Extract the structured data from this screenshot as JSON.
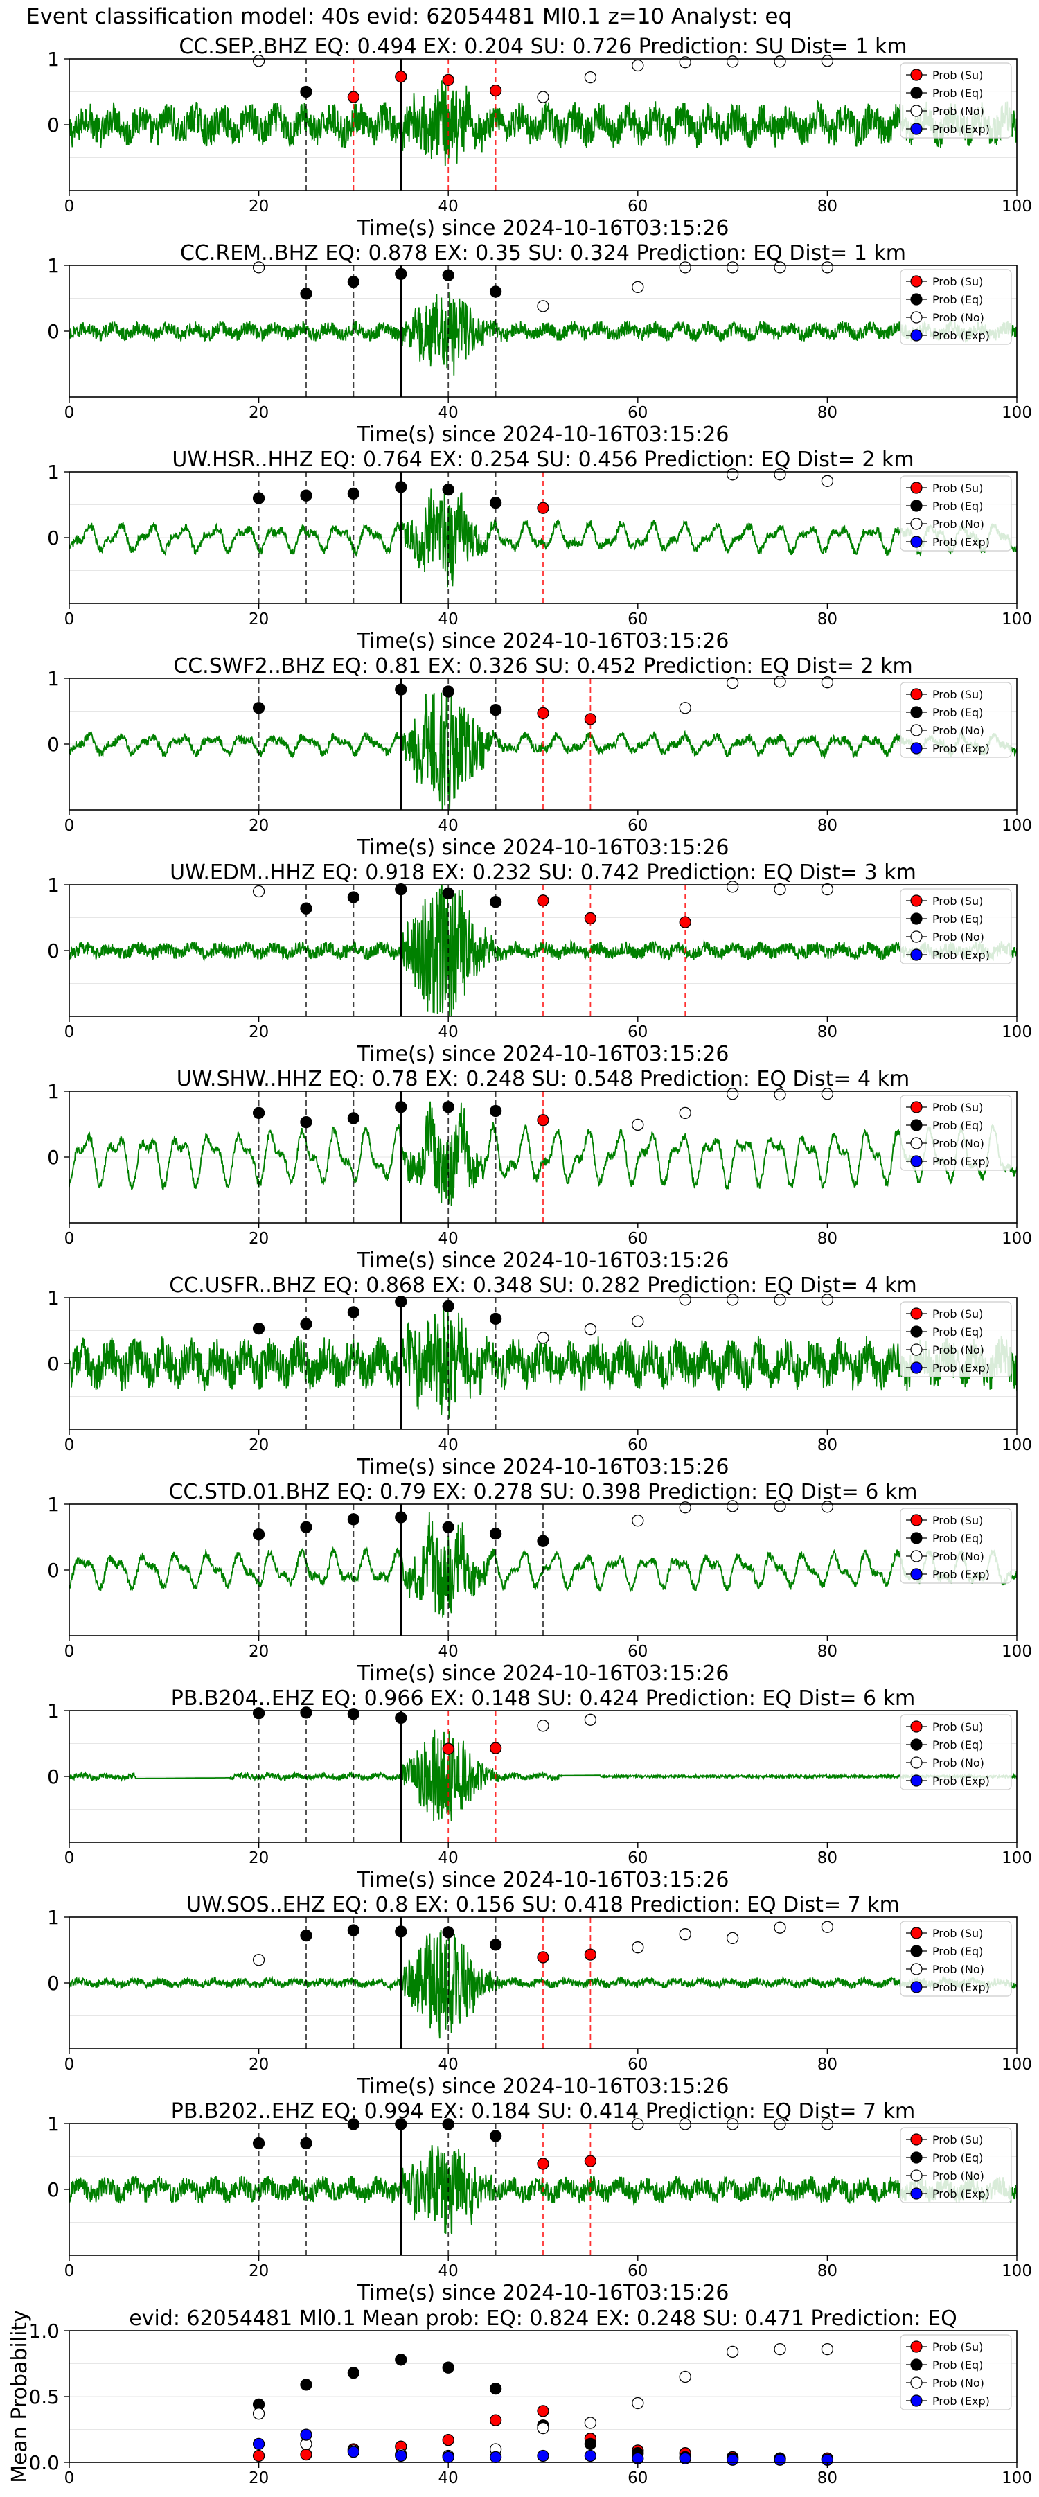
{
  "suptitle": "Event classification model: 40s evid: 62054481 Ml0.1 z=10 Analyst: eq",
  "colors": {
    "waveform": "#008000",
    "su": "#ff0000",
    "eq": "#000000",
    "no": "#ffffff",
    "exp": "#0000ff",
    "pick_dashed": "#000000",
    "su_dashed": "#ff0000",
    "origin_line": "#000000"
  },
  "legend_labels": [
    "Prob (Su)",
    "Prob (Eq)",
    "Prob (No)",
    "Prob (Exp)"
  ],
  "chart_data": [
    {
      "type": "line",
      "title": "CC.SEP..BHZ   EQ: 0.494  EX: 0.204  SU: 0.726   Prediction: SU    Dist= 1 km",
      "xlabel": "Time(s) since 2024-10-16T03:15:26",
      "xlim": [
        0,
        100
      ],
      "ylim": [
        -1,
        1
      ],
      "xticks": [
        0,
        20,
        40,
        60,
        80,
        100
      ],
      "yticks": [
        1,
        0
      ],
      "legend": "top-right",
      "waveform": {
        "noise_amp": 0.3,
        "event_amp": 0.45,
        "style": "noisy"
      },
      "origin_time": 35,
      "pick_lines_eq": [
        25
      ],
      "pick_lines_su": [
        30,
        40,
        45
      ],
      "series": [
        {
          "name": "Prob (Su)",
          "x": [
            30,
            35,
            40,
            45
          ],
          "y": [
            0.42,
            0.73,
            0.68,
            0.52
          ]
        },
        {
          "name": "Prob (Eq)",
          "x": [
            25
          ],
          "y": [
            0.5
          ]
        },
        {
          "name": "Prob (No)",
          "x": [
            20,
            50,
            55,
            60,
            65,
            70,
            75,
            80
          ],
          "y": [
            0.97,
            0.42,
            0.72,
            0.9,
            0.95,
            0.96,
            0.96,
            0.97
          ]
        }
      ]
    },
    {
      "type": "line",
      "title": "CC.REM..BHZ   EQ: 0.878  EX: 0.35  SU: 0.324   Prediction: EQ    Dist= 1 km",
      "xlabel": "Time(s) since 2024-10-16T03:15:26",
      "xlim": [
        0,
        100
      ],
      "ylim": [
        -1,
        1
      ],
      "xticks": [
        0,
        20,
        40,
        60,
        80,
        100
      ],
      "yticks": [
        1,
        0
      ],
      "legend": "top-right",
      "waveform": {
        "noise_amp": 0.13,
        "event_amp": 0.55,
        "style": "noisy"
      },
      "origin_time": 35,
      "pick_lines_eq": [
        25,
        30,
        40,
        45
      ],
      "pick_lines_su": [],
      "series": [
        {
          "name": "Prob (Eq)",
          "x": [
            25,
            30,
            35,
            40,
            45
          ],
          "y": [
            0.57,
            0.75,
            0.87,
            0.85,
            0.6
          ]
        },
        {
          "name": "Prob (No)",
          "x": [
            20,
            50,
            60,
            65,
            70,
            75,
            80
          ],
          "y": [
            0.97,
            0.38,
            0.67,
            0.97,
            0.97,
            0.97,
            0.97
          ]
        }
      ]
    },
    {
      "type": "line",
      "title": "UW.HSR..HHZ   EQ: 0.764  EX: 0.254  SU: 0.456   Prediction: EQ    Dist= 2 km",
      "xlabel": "Time(s) since 2024-10-16T03:15:26",
      "xlim": [
        0,
        100
      ],
      "ylim": [
        -1,
        1
      ],
      "xticks": [
        0,
        20,
        40,
        60,
        80,
        100
      ],
      "yticks": [
        1,
        0
      ],
      "legend": "top-right",
      "waveform": {
        "noise_amp": 0.22,
        "event_amp": 0.6,
        "style": "smooth"
      },
      "origin_time": 35,
      "pick_lines_eq": [
        20,
        25,
        30,
        40,
        45
      ],
      "pick_lines_su": [
        50
      ],
      "series": [
        {
          "name": "Prob (Su)",
          "x": [
            50
          ],
          "y": [
            0.45
          ]
        },
        {
          "name": "Prob (Eq)",
          "x": [
            20,
            25,
            30,
            35,
            40,
            45
          ],
          "y": [
            0.6,
            0.64,
            0.67,
            0.77,
            0.73,
            0.53
          ]
        },
        {
          "name": "Prob (No)",
          "x": [
            70,
            75,
            80
          ],
          "y": [
            0.96,
            0.96,
            0.86
          ]
        }
      ]
    },
    {
      "type": "line",
      "title": "CC.SWF2..BHZ   EQ: 0.81  EX: 0.326  SU: 0.452   Prediction: EQ    Dist= 2 km",
      "xlabel": "Time(s) since 2024-10-16T03:15:26",
      "xlim": [
        0,
        100
      ],
      "ylim": [
        -1,
        1
      ],
      "xticks": [
        0,
        20,
        40,
        60,
        80,
        100
      ],
      "yticks": [
        1,
        0
      ],
      "legend": "top-right",
      "waveform": {
        "noise_amp": 0.15,
        "event_amp": 0.9,
        "style": "smooth"
      },
      "origin_time": 35,
      "pick_lines_eq": [
        20,
        40,
        45
      ],
      "pick_lines_su": [
        50,
        55
      ],
      "series": [
        {
          "name": "Prob (Su)",
          "x": [
            50,
            55
          ],
          "y": [
            0.47,
            0.38
          ]
        },
        {
          "name": "Prob (Eq)",
          "x": [
            20,
            35,
            40,
            45
          ],
          "y": [
            0.55,
            0.83,
            0.8,
            0.52
          ]
        },
        {
          "name": "Prob (No)",
          "x": [
            65,
            70,
            75,
            80
          ],
          "y": [
            0.55,
            0.93,
            0.95,
            0.94
          ]
        }
      ]
    },
    {
      "type": "line",
      "title": "UW.EDM..HHZ   EQ: 0.918  EX: 0.232  SU: 0.742   Prediction: EQ    Dist= 3 km",
      "xlabel": "Time(s) since 2024-10-16T03:15:26",
      "xlim": [
        0,
        100
      ],
      "ylim": [
        -1,
        1
      ],
      "xticks": [
        0,
        20,
        40,
        60,
        80,
        100
      ],
      "yticks": [
        1,
        0
      ],
      "legend": "top-right",
      "waveform": {
        "noise_amp": 0.12,
        "event_amp": 1.0,
        "style": "noisy"
      },
      "origin_time": 35,
      "pick_lines_eq": [
        25,
        30,
        40,
        45
      ],
      "pick_lines_su": [
        50,
        55,
        65
      ],
      "series": [
        {
          "name": "Prob (Su)",
          "x": [
            50,
            55,
            65
          ],
          "y": [
            0.76,
            0.49,
            0.43
          ]
        },
        {
          "name": "Prob (Eq)",
          "x": [
            25,
            30,
            35,
            40,
            45
          ],
          "y": [
            0.64,
            0.81,
            0.93,
            0.87,
            0.74
          ]
        },
        {
          "name": "Prob (No)",
          "x": [
            20,
            70,
            75,
            80
          ],
          "y": [
            0.9,
            0.97,
            0.93,
            0.93
          ]
        }
      ]
    },
    {
      "type": "line",
      "title": "UW.SHW..HHZ   EQ: 0.78  EX: 0.248  SU: 0.548   Prediction: EQ    Dist= 4 km",
      "xlabel": "Time(s) since 2024-10-16T03:15:26",
      "xlim": [
        0,
        100
      ],
      "ylim": [
        -1,
        1
      ],
      "xticks": [
        0,
        20,
        40,
        60,
        80,
        100
      ],
      "yticks": [
        1,
        0
      ],
      "legend": "top-right",
      "waveform": {
        "noise_amp": 0.45,
        "event_amp": 0.5,
        "style": "smooth"
      },
      "origin_time": 35,
      "pick_lines_eq": [
        20,
        25,
        30,
        40,
        45
      ],
      "pick_lines_su": [
        50
      ],
      "series": [
        {
          "name": "Prob (Su)",
          "x": [
            50
          ],
          "y": [
            0.56
          ]
        },
        {
          "name": "Prob (Eq)",
          "x": [
            20,
            25,
            30,
            35,
            40,
            45
          ],
          "y": [
            0.67,
            0.53,
            0.59,
            0.76,
            0.76,
            0.7
          ]
        },
        {
          "name": "Prob (No)",
          "x": [
            60,
            65,
            70,
            75,
            80
          ],
          "y": [
            0.49,
            0.67,
            0.96,
            0.95,
            0.96
          ]
        }
      ]
    },
    {
      "type": "line",
      "title": "CC.USFR..BHZ   EQ: 0.868  EX: 0.348  SU: 0.282   Prediction: EQ    Dist= 4 km",
      "xlabel": "Time(s) since 2024-10-16T03:15:26",
      "xlim": [
        0,
        100
      ],
      "ylim": [
        -1,
        1
      ],
      "xticks": [
        0,
        20,
        40,
        60,
        80,
        100
      ],
      "yticks": [
        1,
        0
      ],
      "legend": "top-right",
      "waveform": {
        "noise_amp": 0.35,
        "event_amp": 0.7,
        "style": "noisy"
      },
      "origin_time": 35,
      "pick_lines_eq": [
        25,
        30,
        40,
        45
      ],
      "pick_lines_su": [],
      "series": [
        {
          "name": "Prob (Eq)",
          "x": [
            20,
            25,
            30,
            35,
            40,
            45
          ],
          "y": [
            0.53,
            0.6,
            0.78,
            0.94,
            0.87,
            0.68
          ]
        },
        {
          "name": "Prob (No)",
          "x": [
            50,
            55,
            60,
            65,
            70,
            75,
            80
          ],
          "y": [
            0.39,
            0.52,
            0.64,
            0.97,
            0.97,
            0.97,
            0.97
          ]
        }
      ]
    },
    {
      "type": "line",
      "title": "CC.STD.01.BHZ   EQ: 0.79  EX: 0.278  SU: 0.398   Prediction: EQ    Dist= 6 km",
      "xlabel": "Time(s) since 2024-10-16T03:15:26",
      "xlim": [
        0,
        100
      ],
      "ylim": [
        -1,
        1
      ],
      "xticks": [
        0,
        20,
        40,
        60,
        80,
        100
      ],
      "yticks": [
        1,
        0
      ],
      "legend": "top-right",
      "waveform": {
        "noise_amp": 0.28,
        "event_amp": 0.6,
        "style": "smooth"
      },
      "origin_time": 35,
      "pick_lines_eq": [
        20,
        25,
        30,
        40,
        45,
        50
      ],
      "pick_lines_su": [],
      "series": [
        {
          "name": "Prob (Eq)",
          "x": [
            20,
            25,
            30,
            35,
            40,
            45,
            50
          ],
          "y": [
            0.54,
            0.65,
            0.77,
            0.8,
            0.65,
            0.55,
            0.44
          ]
        },
        {
          "name": "Prob (No)",
          "x": [
            60,
            65,
            70,
            75,
            80
          ],
          "y": [
            0.75,
            0.95,
            0.97,
            0.97,
            0.96
          ]
        }
      ]
    },
    {
      "type": "line",
      "title": "PB.B204..EHZ   EQ: 0.966  EX: 0.148  SU: 0.424   Prediction: EQ    Dist= 6 km",
      "xlabel": "Time(s) since 2024-10-16T03:15:26",
      "xlim": [
        0,
        100
      ],
      "ylim": [
        -1,
        1
      ],
      "xticks": [
        0,
        20,
        40,
        60,
        80,
        100
      ],
      "yticks": [
        1,
        0
      ],
      "legend": "top-right",
      "waveform": {
        "noise_amp": 0.05,
        "event_amp": 0.65,
        "style": "gapped"
      },
      "origin_time": 35,
      "pick_lines_eq": [
        20,
        25,
        30
      ],
      "pick_lines_su": [
        40,
        45
      ],
      "series": [
        {
          "name": "Prob (Su)",
          "x": [
            40,
            45
          ],
          "y": [
            0.42,
            0.43
          ]
        },
        {
          "name": "Prob (Eq)",
          "x": [
            20,
            25,
            30,
            35
          ],
          "y": [
            0.96,
            0.97,
            0.95,
            0.89
          ]
        },
        {
          "name": "Prob (No)",
          "x": [
            50,
            55
          ],
          "y": [
            0.77,
            0.86
          ]
        }
      ]
    },
    {
      "type": "line",
      "title": "UW.SOS..EHZ   EQ: 0.8  EX: 0.156  SU: 0.418   Prediction: EQ    Dist= 7 km",
      "xlabel": "Time(s) since 2024-10-16T03:15:26",
      "xlim": [
        0,
        100
      ],
      "ylim": [
        -1,
        1
      ],
      "xticks": [
        0,
        20,
        40,
        60,
        80,
        100
      ],
      "yticks": [
        1,
        0
      ],
      "legend": "top-right",
      "waveform": {
        "noise_amp": 0.07,
        "event_amp": 0.8,
        "style": "noisy"
      },
      "origin_time": 35,
      "pick_lines_eq": [
        25,
        30,
        40,
        45
      ],
      "pick_lines_su": [
        50,
        55
      ],
      "series": [
        {
          "name": "Prob (Su)",
          "x": [
            50,
            55
          ],
          "y": [
            0.39,
            0.43
          ]
        },
        {
          "name": "Prob (Eq)",
          "x": [
            25,
            30,
            35,
            40,
            45
          ],
          "y": [
            0.72,
            0.8,
            0.78,
            0.77,
            0.58
          ]
        },
        {
          "name": "Prob (No)",
          "x": [
            20,
            60,
            65,
            70,
            75,
            80
          ],
          "y": [
            0.35,
            0.54,
            0.74,
            0.68,
            0.84,
            0.85
          ]
        }
      ]
    },
    {
      "type": "line",
      "title": "PB.B202..EHZ   EQ: 0.994  EX: 0.184  SU: 0.414   Prediction: EQ    Dist= 7 km",
      "xlabel": "Time(s) since 2024-10-16T03:15:26",
      "xlim": [
        0,
        100
      ],
      "ylim": [
        -1,
        1
      ],
      "xticks": [
        0,
        20,
        40,
        60,
        80,
        100
      ],
      "yticks": [
        1,
        0
      ],
      "legend": "top-right",
      "waveform": {
        "noise_amp": 0.18,
        "event_amp": 0.6,
        "style": "noisy"
      },
      "origin_time": 35,
      "pick_lines_eq": [
        20,
        25,
        40,
        45
      ],
      "pick_lines_su": [
        50,
        55
      ],
      "series": [
        {
          "name": "Prob (Su)",
          "x": [
            50,
            55
          ],
          "y": [
            0.39,
            0.43
          ]
        },
        {
          "name": "Prob (Eq)",
          "x": [
            20,
            25,
            30,
            35,
            40,
            45
          ],
          "y": [
            0.7,
            0.7,
            0.99,
            0.99,
            0.99,
            0.81
          ]
        },
        {
          "name": "Prob (No)",
          "x": [
            60,
            65,
            70,
            75,
            80
          ],
          "y": [
            0.99,
            0.99,
            0.99,
            0.99,
            0.99
          ]
        }
      ]
    },
    {
      "type": "scatter",
      "title": "evid: 62054481  Ml0.1   Mean prob:   EQ: 0.824  EX: 0.248  SU: 0.471   Prediction: EQ",
      "xlabel": "",
      "ylabel": "Mean Probability",
      "xlim": [
        0,
        100
      ],
      "ylim": [
        0,
        1
      ],
      "xticks": [
        0,
        20,
        40,
        60,
        80,
        100
      ],
      "yticks": [
        0.0,
        0.5,
        1.0
      ],
      "ytick_labels": [
        "0.0",
        "0.5",
        "1.0"
      ],
      "legend": "top-right",
      "series": [
        {
          "name": "Prob (Su)",
          "x": [
            20,
            25,
            30,
            35,
            40,
            45,
            50,
            55,
            60,
            65,
            70,
            75,
            80
          ],
          "y": [
            0.05,
            0.06,
            0.1,
            0.12,
            0.17,
            0.32,
            0.39,
            0.18,
            0.09,
            0.07,
            0.04,
            0.03,
            0.03
          ]
        },
        {
          "name": "Prob (Eq)",
          "x": [
            20,
            25,
            30,
            35,
            40,
            45,
            50,
            55,
            60,
            65,
            70,
            75,
            80
          ],
          "y": [
            0.44,
            0.59,
            0.68,
            0.78,
            0.72,
            0.56,
            0.28,
            0.14,
            0.07,
            0.04,
            0.03,
            0.03,
            0.02
          ]
        },
        {
          "name": "Prob (No)",
          "x": [
            20,
            25,
            30,
            35,
            40,
            45,
            50,
            55,
            60,
            65,
            70,
            75,
            80
          ],
          "y": [
            0.37,
            0.14,
            0.09,
            0.06,
            0.05,
            0.1,
            0.26,
            0.3,
            0.45,
            0.65,
            0.84,
            0.86,
            0.86
          ]
        },
        {
          "name": "Prob (Exp)",
          "x": [
            20,
            25,
            30,
            35,
            40,
            45,
            50,
            55,
            60,
            65,
            70,
            75,
            80
          ],
          "y": [
            0.14,
            0.21,
            0.08,
            0.05,
            0.04,
            0.04,
            0.05,
            0.05,
            0.03,
            0.03,
            0.02,
            0.02,
            0.02
          ]
        }
      ]
    }
  ]
}
